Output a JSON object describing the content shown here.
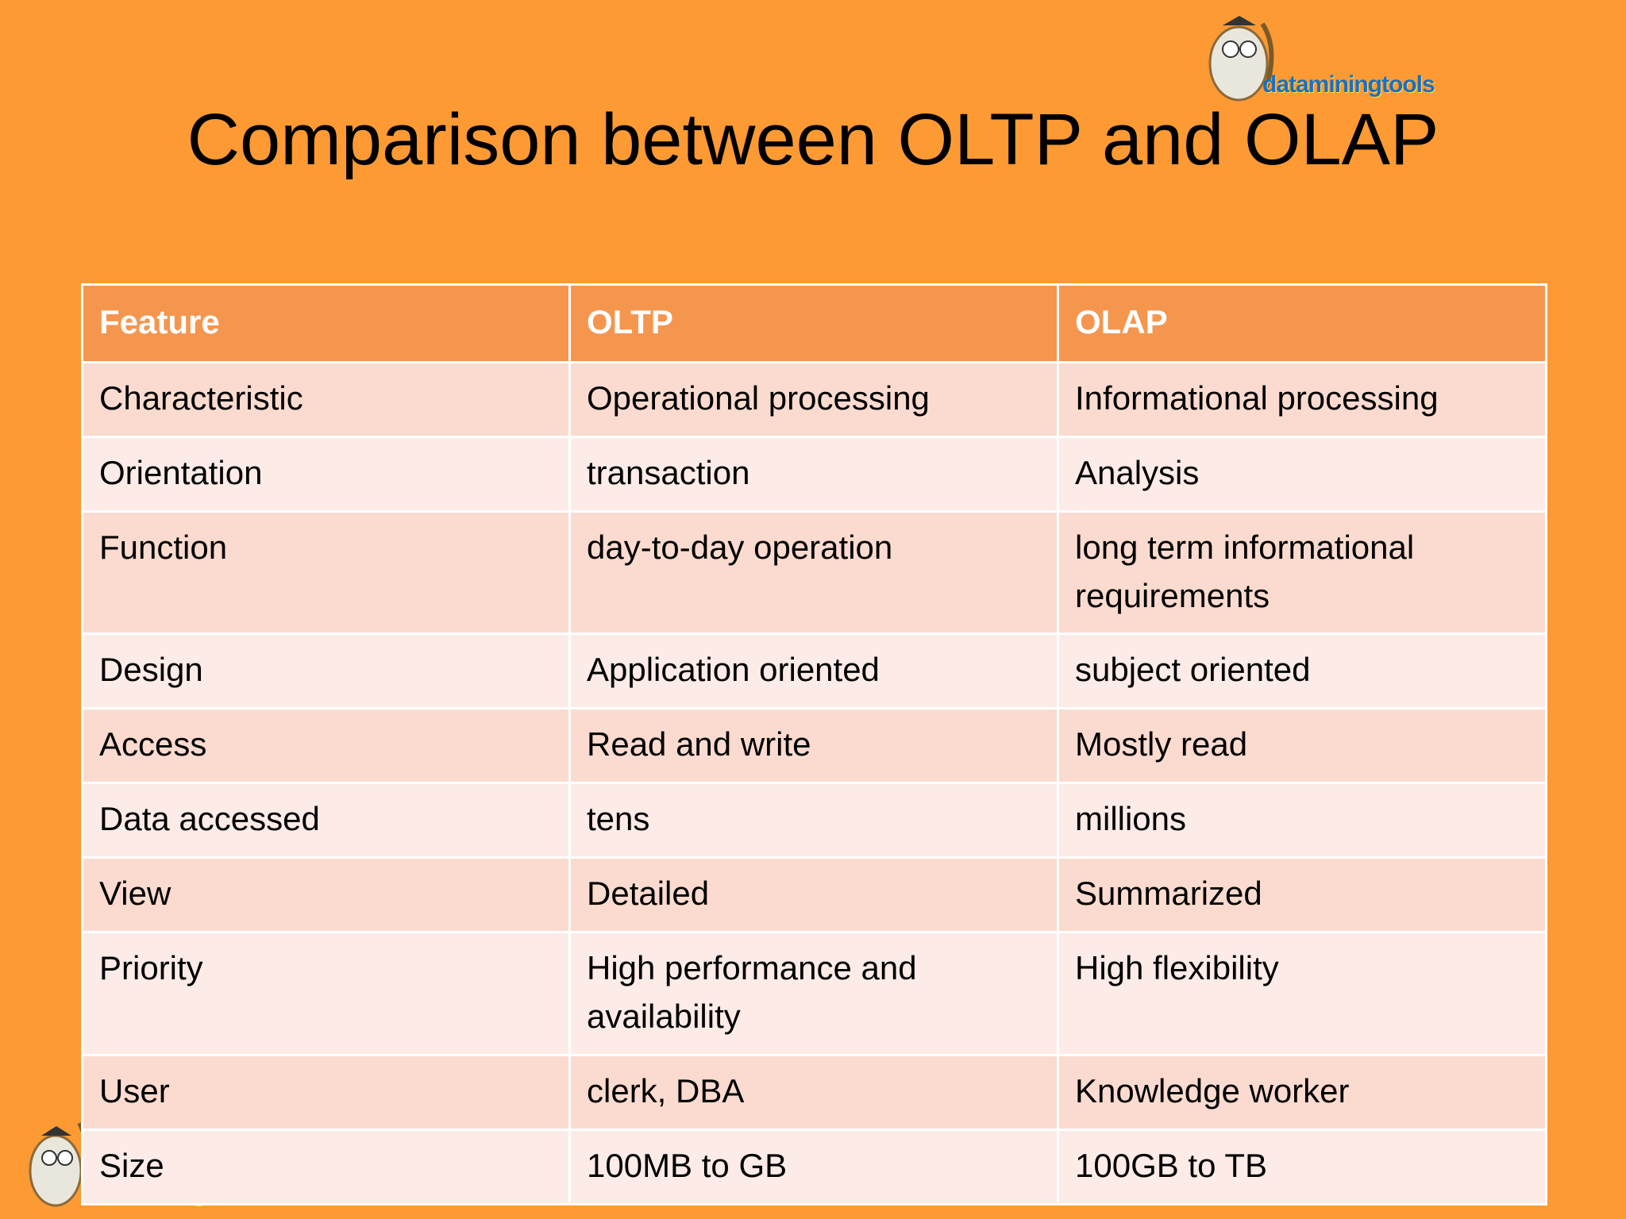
{
  "title": "Comparison between OLTP and OLAP",
  "logos": [
    "dataminingtools",
    "dataminingtools"
  ],
  "table": {
    "header": [
      "Feature",
      "OLTP",
      "OLAP"
    ],
    "rows": [
      [
        "Characteristic",
        "Operational processing",
        "Informational processing"
      ],
      [
        "Orientation",
        "transaction",
        "Analysis"
      ],
      [
        "Function",
        "day-to-day operation",
        "long term informational requirements"
      ],
      [
        "Design",
        "Application oriented",
        "subject oriented"
      ],
      [
        "Access",
        "Read and write",
        "Mostly read"
      ],
      [
        "Data accessed",
        "tens",
        "millions"
      ],
      [
        "View",
        "Detailed",
        "Summarized"
      ],
      [
        "Priority",
        "High performance and availability",
        "High flexibility"
      ],
      [
        "User",
        "clerk, DBA",
        "Knowledge worker"
      ],
      [
        "Size",
        "100MB to GB",
        "100GB to TB"
      ]
    ]
  }
}
